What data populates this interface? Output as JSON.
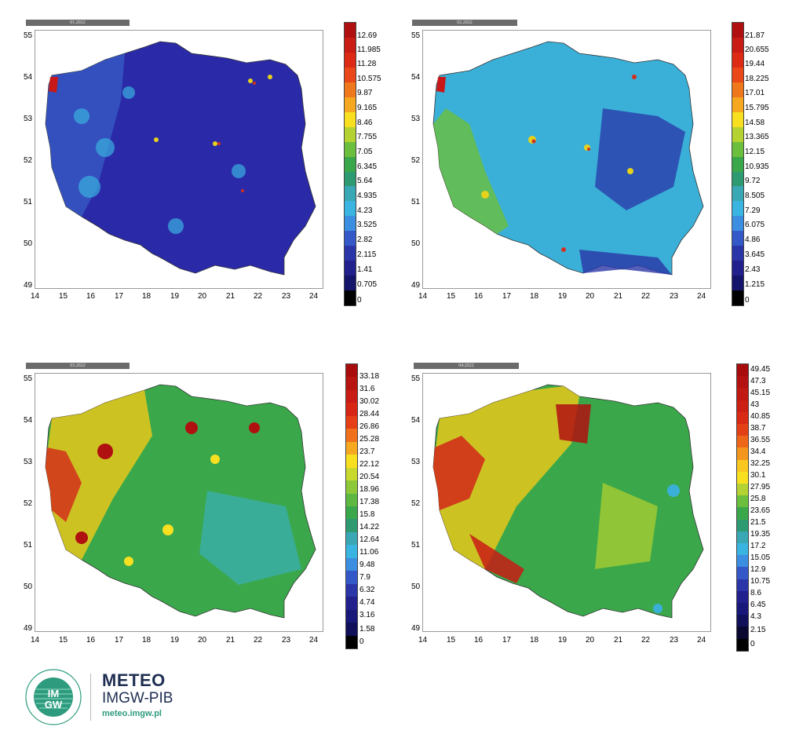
{
  "panels": [
    {
      "title": "01.2022",
      "legend": [
        "12.69",
        "11.985",
        "11.28",
        "10.575",
        "9.87",
        "9.165",
        "8.46",
        "7.755",
        "7.05",
        "6.345",
        "5.64",
        "4.935",
        "4.23",
        "3.525",
        "2.82",
        "2.115",
        "1.41",
        "0.705",
        "0"
      ]
    },
    {
      "title": "02.2022",
      "legend": [
        "21.87",
        "20.655",
        "19.44",
        "18.225",
        "17.01",
        "15.795",
        "14.58",
        "13.365",
        "12.15",
        "10.935",
        "9.72",
        "8.505",
        "7.29",
        "6.075",
        "4.86",
        "3.645",
        "2.43",
        "1.215",
        "0"
      ]
    },
    {
      "title": "03.2022",
      "legend": [
        "33.18",
        "31.6",
        "30.02",
        "28.44",
        "26.86",
        "25.28",
        "23.7",
        "22.12",
        "20.54",
        "18.96",
        "17.38",
        "15.8",
        "14.22",
        "12.64",
        "11.06",
        "9.48",
        "7.9",
        "6.32",
        "4.74",
        "3.16",
        "1.58",
        "0"
      ]
    },
    {
      "title": "04.2022",
      "legend": [
        "49.45",
        "47.3",
        "45.15",
        "43",
        "40.85",
        "38.7",
        "36.55",
        "34.4",
        "32.25",
        "30.1",
        "27.95",
        "25.8",
        "23.65",
        "21.5",
        "19.35",
        "17.2",
        "15.05",
        "12.9",
        "10.75",
        "8.6",
        "6.45",
        "4.3",
        "2.15",
        "0"
      ]
    }
  ],
  "axes": {
    "x_ticks": [
      "14",
      "15",
      "16",
      "17",
      "18",
      "19",
      "20",
      "21",
      "22",
      "23",
      "24"
    ],
    "y_ticks": [
      "55",
      "54",
      "53",
      "52",
      "51",
      "50",
      "49"
    ]
  },
  "logo": {
    "line1": "METEO",
    "line2": "IMGW-PIB",
    "line3": "meteo.imgw.pl",
    "badge": "IM GW"
  }
}
